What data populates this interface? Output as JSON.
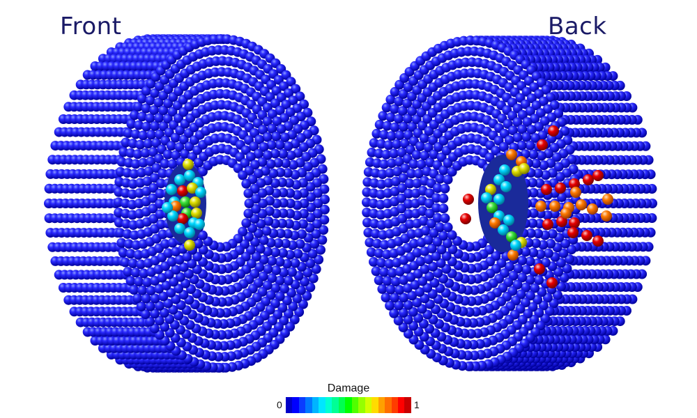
{
  "labels": {
    "front": "Front",
    "back": "Back"
  },
  "legend": {
    "title": "Damage",
    "min_label": "0",
    "max_label": "1",
    "colors": [
      "#0000c8",
      "#0000ff",
      "#0a3cff",
      "#0078ff",
      "#00b4ff",
      "#00e6ff",
      "#00ffd2",
      "#00ff96",
      "#00ff50",
      "#00ff00",
      "#50ff00",
      "#96ff00",
      "#d2ff00",
      "#ffdc00",
      "#ffa000",
      "#ff6e00",
      "#ff3c00",
      "#ff0000",
      "#c80000"
    ]
  },
  "colors": {
    "undamaged": "#0a0adc",
    "undamaged_dark": "#00008c",
    "undamaged_light": "#5a6cff",
    "low": "#00d2ff",
    "mid": "#3cdc3c",
    "high_mid": "#dcdc00",
    "high": "#ff7800",
    "max": "#e60000"
  }
}
